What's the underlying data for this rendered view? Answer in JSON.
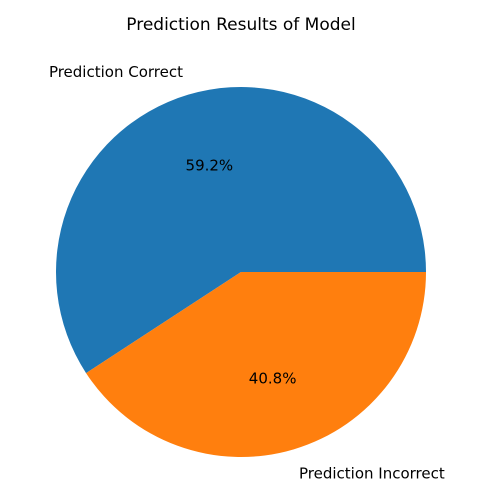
{
  "chart_data": {
    "type": "pie",
    "title": "Prediction Results of Model",
    "slices": [
      {
        "label": "Prediction Correct",
        "value": 59.2,
        "pct_label": "59.2%",
        "color": "#1f77b4"
      },
      {
        "label": "Prediction Incorrect",
        "value": 40.8,
        "pct_label": "40.8%",
        "color": "#ff7f0e"
      }
    ],
    "start_angle_deg": 0,
    "direction": "counterclockwise"
  }
}
